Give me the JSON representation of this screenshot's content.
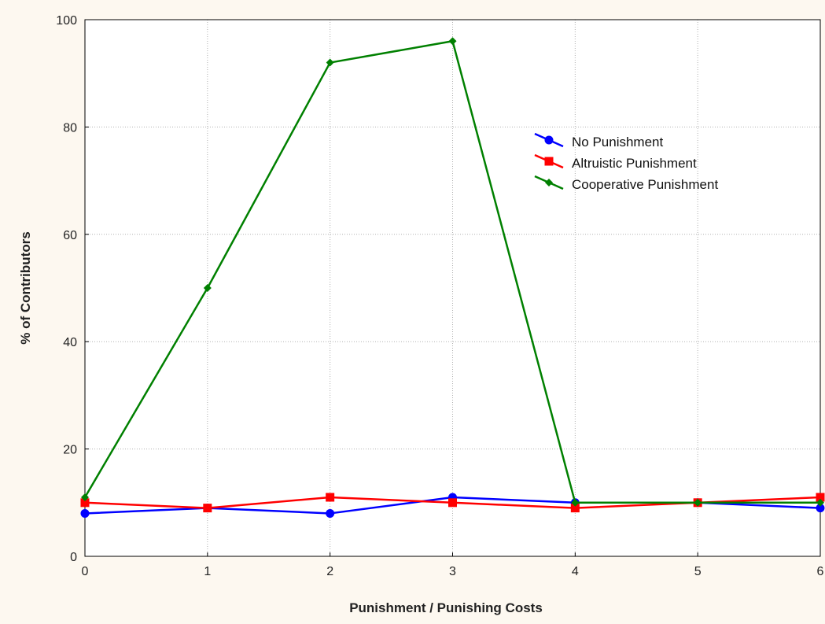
{
  "chart_data": {
    "type": "line",
    "xlabel": "Punishment / Punishing Costs",
    "ylabel": "% of Contributors",
    "x": [
      0,
      1,
      2,
      3,
      4,
      5,
      6
    ],
    "xlim": [
      0,
      6
    ],
    "ylim": [
      0,
      100
    ],
    "xticks": [
      "0",
      "1",
      "2",
      "3",
      "4",
      "5",
      "6"
    ],
    "yticks": [
      "0",
      "20",
      "40",
      "60",
      "80",
      "100"
    ],
    "grid": true,
    "legend_position": "top-right",
    "series": [
      {
        "name": "No Punishment",
        "color": "#0000ff",
        "marker": "circle",
        "values": [
          8,
          9,
          8,
          11,
          10,
          10,
          9
        ]
      },
      {
        "name": "Altruistic Punishment",
        "color": "#ff0000",
        "marker": "square",
        "values": [
          10,
          9,
          11,
          10,
          9,
          10,
          11
        ]
      },
      {
        "name": "Cooperative Punishment",
        "color": "#008000",
        "marker": "diamond",
        "values": [
          11,
          50,
          92,
          96,
          10,
          10,
          10
        ]
      }
    ]
  }
}
